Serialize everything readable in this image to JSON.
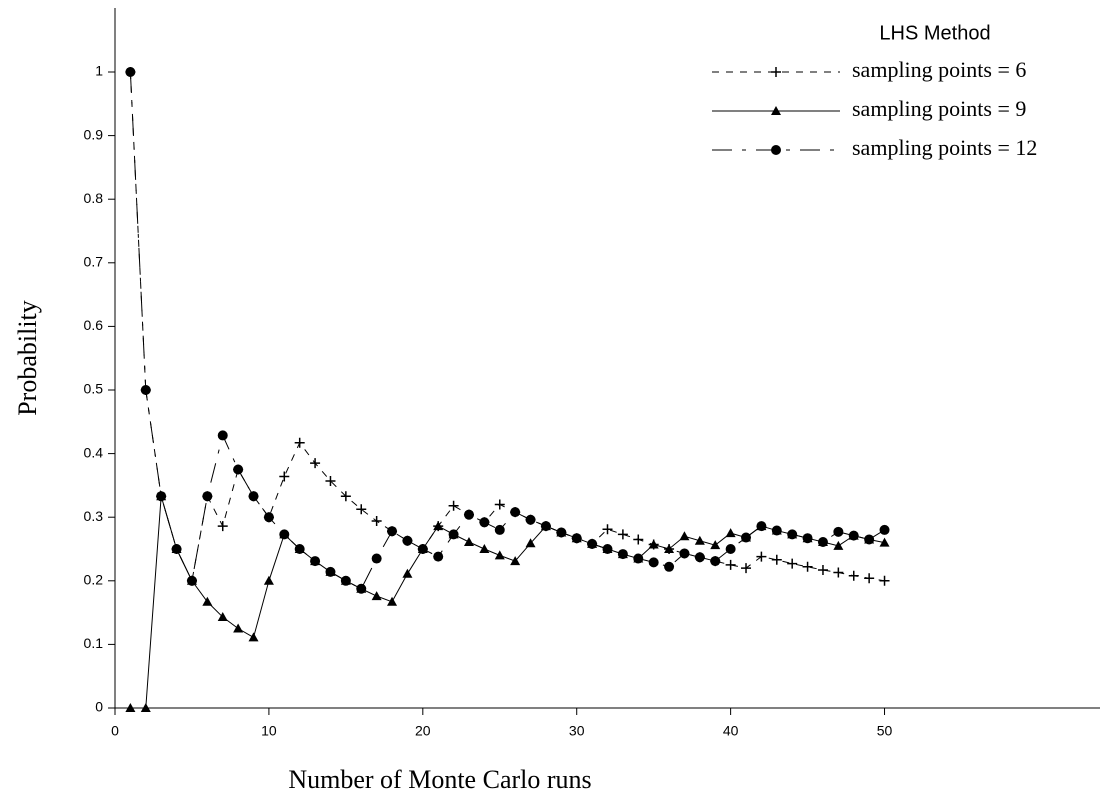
{
  "chart_data": {
    "type": "line",
    "xlabel": "Number of Monte Carlo runs",
    "ylabel": "Probability",
    "legend_title": "LHS Method",
    "legend_position": "upper right",
    "xlim": [
      0,
      64
    ],
    "xticks": [
      0,
      10,
      20,
      30,
      40,
      50
    ],
    "ylim": [
      0,
      1.1
    ],
    "yticks": [
      0,
      0.1,
      0.2,
      0.3,
      0.4,
      0.5,
      0.6,
      0.7,
      0.8,
      0.9,
      1
    ],
    "x": [
      1,
      2,
      3,
      4,
      5,
      6,
      7,
      8,
      9,
      10,
      11,
      12,
      13,
      14,
      15,
      16,
      17,
      18,
      19,
      20,
      21,
      22,
      23,
      24,
      25,
      26,
      27,
      28,
      29,
      30,
      31,
      32,
      33,
      34,
      35,
      36,
      37,
      38,
      39,
      40,
      41,
      42,
      43,
      44,
      45,
      46,
      47,
      48,
      49,
      50
    ],
    "series": [
      {
        "name": "sampling points = 6",
        "color": "#000000",
        "marker": "plus",
        "dash": "7,7",
        "values": [
          1,
          0.5,
          0.333,
          0.25,
          0.2,
          0.333,
          0.286,
          0.375,
          0.333,
          0.3,
          0.364,
          0.417,
          0.385,
          0.357,
          0.333,
          0.3125,
          0.294,
          0.278,
          0.263,
          0.25,
          0.286,
          0.318,
          0.304,
          0.292,
          0.32,
          0.308,
          0.296,
          0.286,
          0.276,
          0.267,
          0.258,
          0.281,
          0.273,
          0.265,
          0.257,
          0.25,
          0.243,
          0.237,
          0.231,
          0.225,
          0.22,
          0.238,
          0.233,
          0.227,
          0.222,
          0.217,
          0.213,
          0.208,
          0.204,
          0.2
        ]
      },
      {
        "name": "sampling points = 9",
        "color": "#000000",
        "marker": "triangle",
        "dash": "none",
        "values": [
          0,
          0,
          0.333,
          0.25,
          0.2,
          0.167,
          0.143,
          0.125,
          0.111,
          0.2,
          0.273,
          0.25,
          0.231,
          0.214,
          0.2,
          0.1875,
          0.176,
          0.167,
          0.211,
          0.25,
          0.286,
          0.273,
          0.261,
          0.25,
          0.24,
          0.231,
          0.259,
          0.286,
          0.276,
          0.267,
          0.258,
          0.25,
          0.242,
          0.235,
          0.257,
          0.25,
          0.27,
          0.263,
          0.256,
          0.275,
          0.268,
          0.286,
          0.279,
          0.273,
          0.267,
          0.261,
          0.255,
          0.271,
          0.265,
          0.26
        ]
      },
      {
        "name": "sampling points = 12",
        "color": "#000000",
        "marker": "circle",
        "dash": "20,10,4,10",
        "values": [
          1,
          0.5,
          0.333,
          0.25,
          0.2,
          0.333,
          0.4286,
          0.375,
          0.333,
          0.3,
          0.273,
          0.25,
          0.231,
          0.214,
          0.2,
          0.1875,
          0.235,
          0.278,
          0.263,
          0.25,
          0.238,
          0.273,
          0.304,
          0.292,
          0.28,
          0.308,
          0.296,
          0.286,
          0.276,
          0.267,
          0.258,
          0.25,
          0.242,
          0.235,
          0.229,
          0.222,
          0.243,
          0.237,
          0.231,
          0.25,
          0.268,
          0.286,
          0.279,
          0.273,
          0.267,
          0.261,
          0.277,
          0.271,
          0.265,
          0.28
        ]
      }
    ]
  }
}
